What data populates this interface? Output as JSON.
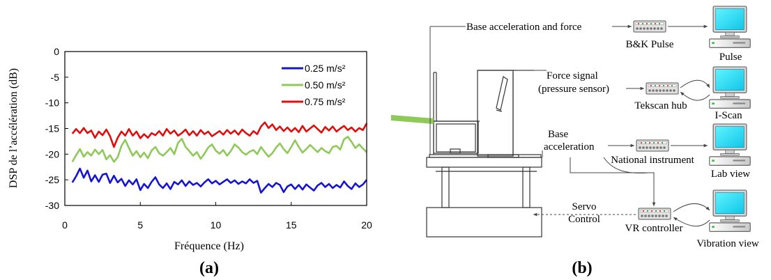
{
  "chart_data": {
    "type": "line",
    "xlabel": "Fréquence (Hz)",
    "ylabel": "DSP de l’accélération (dB)",
    "xlim": [
      0,
      20
    ],
    "ylim": [
      -30,
      0
    ],
    "xticks": [
      "0",
      "5",
      "10",
      "15",
      "20"
    ],
    "yticks": [
      "0",
      "-5",
      "-10",
      "-15",
      "-20",
      "-25",
      "-30"
    ],
    "grid": false,
    "legend_position": "top-right",
    "series": [
      {
        "name": "0.25 m/s²",
        "color": "#1414d2",
        "x": [
          0.5,
          0.75,
          1,
          1.25,
          1.5,
          1.75,
          2,
          2.25,
          2.5,
          2.75,
          3,
          3.25,
          3.5,
          3.75,
          4,
          4.25,
          4.5,
          4.75,
          5,
          5.25,
          5.5,
          5.75,
          6,
          6.25,
          6.5,
          6.75,
          7,
          7.25,
          7.5,
          7.75,
          8,
          8.25,
          8.5,
          8.75,
          9,
          9.25,
          9.5,
          9.75,
          10,
          10.25,
          10.5,
          10.75,
          11,
          11.25,
          11.5,
          11.75,
          12,
          12.25,
          12.5,
          12.75,
          13,
          13.25,
          13.5,
          13.75,
          14,
          14.25,
          14.5,
          14.75,
          15,
          15.25,
          15.5,
          15.75,
          16,
          16.25,
          16.5,
          16.75,
          17,
          17.25,
          17.5,
          17.75,
          18,
          18.25,
          18.5,
          18.75,
          19,
          19.25,
          19.5,
          19.75,
          20
        ],
        "y": [
          -25.5,
          -24.3,
          -22.8,
          -24.6,
          -23.2,
          -25.3,
          -24.1,
          -25.4,
          -24,
          -23.8,
          -25.6,
          -24.2,
          -25.5,
          -24.8,
          -26.2,
          -25.1,
          -25.9,
          -24.9,
          -27,
          -25.8,
          -26.6,
          -25.4,
          -24.5,
          -25.9,
          -26.6,
          -25.7,
          -26.8,
          -25.4,
          -25.9,
          -25.1,
          -26.2,
          -25.3,
          -26,
          -25.6,
          -26.3,
          -25.5,
          -24.9,
          -25.7,
          -25.2,
          -25.9,
          -25.4,
          -24.9,
          -25.6,
          -25.1,
          -25.8,
          -25.3,
          -25.7,
          -24.9,
          -25.6,
          -25.2,
          -27.5,
          -26.6,
          -25.8,
          -26.4,
          -25.6,
          -26,
          -27.4,
          -26.3,
          -25.9,
          -26.8,
          -26,
          -26.9,
          -25.9,
          -26.5,
          -27.1,
          -26.1,
          -25.6,
          -26.4,
          -25.8,
          -26.6,
          -26,
          -26.5,
          -25.3,
          -26.2,
          -26.8,
          -25.7,
          -26.4,
          -25.9,
          -25
        ]
      },
      {
        "name": "0.50 m/s²",
        "color": "#8ec95a",
        "x": [
          0.5,
          0.75,
          1,
          1.25,
          1.5,
          1.75,
          2,
          2.25,
          2.5,
          2.75,
          3,
          3.25,
          3.5,
          3.75,
          4,
          4.25,
          4.5,
          4.75,
          5,
          5.25,
          5.5,
          5.75,
          6,
          6.25,
          6.5,
          6.75,
          7,
          7.25,
          7.5,
          7.75,
          8,
          8.25,
          8.5,
          8.75,
          9,
          9.25,
          9.5,
          9.75,
          10,
          10.25,
          10.5,
          10.75,
          11,
          11.25,
          11.5,
          11.75,
          12,
          12.25,
          12.5,
          12.75,
          13,
          13.25,
          13.5,
          13.75,
          14,
          14.25,
          14.5,
          14.75,
          15,
          15.25,
          15.5,
          15.75,
          16,
          16.25,
          16.5,
          16.75,
          17,
          17.25,
          17.5,
          17.75,
          18,
          18.25,
          18.5,
          18.75,
          19,
          19.25,
          19.5,
          19.75,
          20
        ],
        "y": [
          -21.5,
          -20.2,
          -19,
          -20.5,
          -19.6,
          -20.3,
          -19.1,
          -20,
          -19.2,
          -21,
          -20.2,
          -21.5,
          -20.6,
          -18.4,
          -17.2,
          -18.8,
          -20.3,
          -19.4,
          -20.6,
          -19.7,
          -20.8,
          -19.3,
          -18.6,
          -19.8,
          -20.3,
          -19.6,
          -18.8,
          -20,
          -17.8,
          -17,
          -18.6,
          -19.4,
          -20.3,
          -19.6,
          -20.9,
          -19.9,
          -18.7,
          -18.1,
          -19.3,
          -19.9,
          -19.2,
          -20.3,
          -19.4,
          -18.1,
          -18.7,
          -19.6,
          -20.1,
          -19.5,
          -19.2,
          -20,
          -18.6,
          -19.6,
          -20.5,
          -19.8,
          -18.7,
          -17.9,
          -19,
          -19.8,
          -18.6,
          -17.3,
          -18.6,
          -19.7,
          -19,
          -18.2,
          -18.9,
          -19.6,
          -18.8,
          -19.4,
          -19.8,
          -18.6,
          -18.4,
          -19.1,
          -17.1,
          -16.6,
          -17.6,
          -18.8,
          -18.1,
          -18.9,
          -19.6
        ]
      },
      {
        "name": "0.75 m/s²",
        "color": "#e00d0d",
        "x": [
          0.5,
          0.75,
          1,
          1.25,
          1.5,
          1.75,
          2,
          2.25,
          2.5,
          2.75,
          3,
          3.25,
          3.5,
          3.75,
          4,
          4.25,
          4.5,
          4.75,
          5,
          5.25,
          5.5,
          5.75,
          6,
          6.25,
          6.5,
          6.75,
          7,
          7.25,
          7.5,
          7.75,
          8,
          8.25,
          8.5,
          8.75,
          9,
          9.25,
          9.5,
          9.75,
          10,
          10.25,
          10.5,
          10.75,
          11,
          11.25,
          11.5,
          11.75,
          12,
          12.25,
          12.5,
          12.75,
          13,
          13.25,
          13.5,
          13.75,
          14,
          14.25,
          14.5,
          14.75,
          15,
          15.25,
          15.5,
          15.75,
          16,
          16.25,
          16.5,
          16.75,
          17,
          17.25,
          17.5,
          17.75,
          18,
          18.25,
          18.5,
          18.75,
          19,
          19.25,
          19.5,
          19.75,
          20
        ],
        "y": [
          -16,
          -15.1,
          -15.9,
          -14.9,
          -15.9,
          -15.4,
          -16.8,
          -15.6,
          -16.3,
          -15.2,
          -16.5,
          -18.6,
          -16.8,
          -15.6,
          -16.4,
          -15.1,
          -16.4,
          -15.6,
          -16.9,
          -16.1,
          -16.8,
          -15.9,
          -16.3,
          -15.5,
          -16.4,
          -15.1,
          -16,
          -15.4,
          -16.4,
          -15.9,
          -15.2,
          -16.3,
          -15.5,
          -16.4,
          -15.3,
          -16.1,
          -15.6,
          -16.5,
          -16,
          -15.5,
          -16.2,
          -15.3,
          -16,
          -15.4,
          -16.2,
          -15.2,
          -15.9,
          -16.4,
          -15.5,
          -16.1,
          -14.6,
          -13.8,
          -14.9,
          -14.2,
          -15.3,
          -14.6,
          -15.5,
          -14.8,
          -15.6,
          -14.9,
          -15.7,
          -14.5,
          -15.6,
          -15,
          -14.4,
          -15.1,
          -15.8,
          -14.7,
          -15.4,
          -14.6,
          -15.6,
          -15,
          -14.5,
          -15.3,
          -14.8,
          -15.6,
          -14.9,
          -15.3,
          -14
        ]
      }
    ]
  },
  "panels": {
    "a": "(a)",
    "b": "(b)"
  },
  "diagram": {
    "base_accel_force": "Base acceleration and force",
    "bk_pulse": "B&K Pulse",
    "pulse": "Pulse",
    "force_signal": "Force signal",
    "pressure_sensor": "(pressure sensor)",
    "tekscan_hub": "Tekscan hub",
    "iscan": "I-Scan",
    "base": "Base",
    "acceleration": "acceleration",
    "national_instrument": "National instrument",
    "lab_view": "Lab view",
    "servo": "Servo",
    "control": "Control",
    "vr_controller": "VR controller",
    "vibration_view": "Vibration view"
  }
}
